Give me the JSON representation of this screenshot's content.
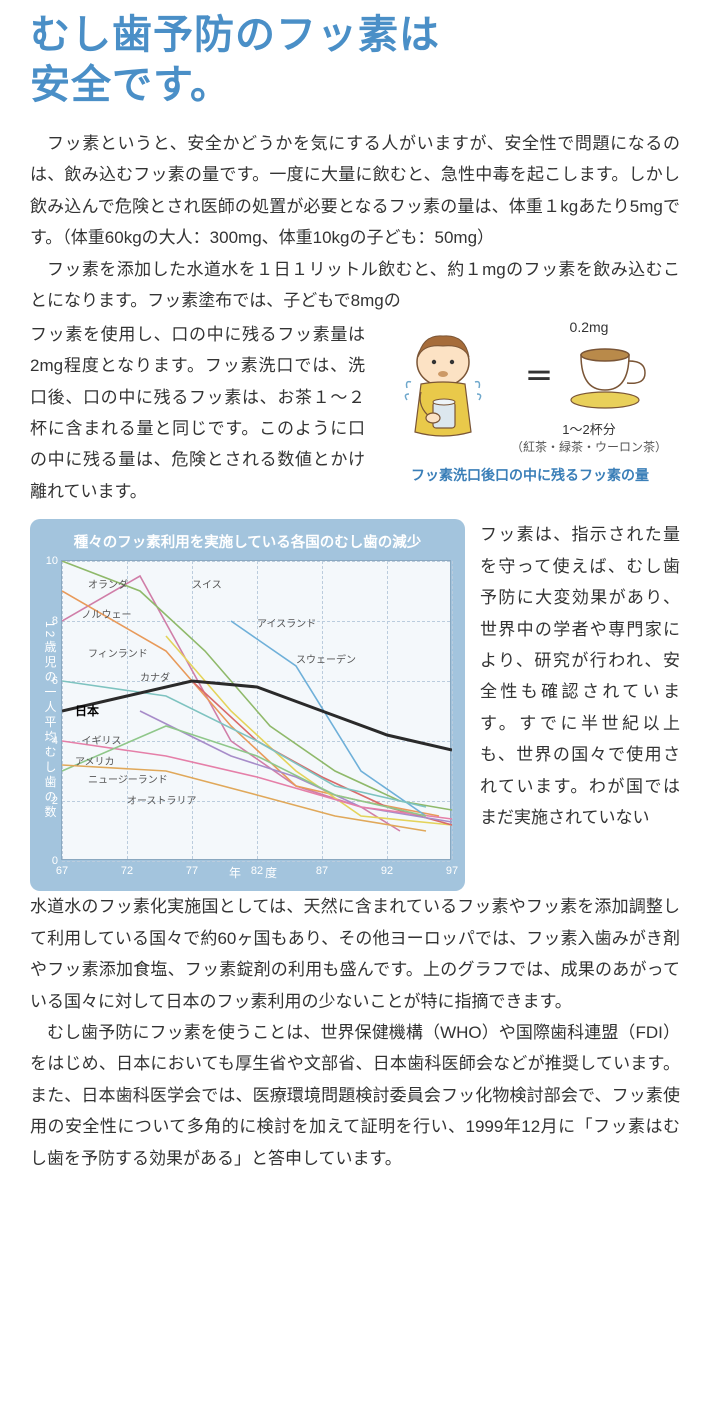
{
  "title_color": "#4a8fc7",
  "title_line1": "むし歯予防のフッ素は",
  "title_line2": "安全です。",
  "para1": "フッ素というと、安全かどうかを気にする人がいますが、安全性で問題になるのは、飲み込むフッ素の量です。一度に大量に飲むと、急性中毒を起こします。しかし飲み込んで危険とされ医師の処置が必要となるフッ素の量は、体重１kgあたり5mgです。（体重60kgの大人：300mg、体重10kgの子ども：50mg）",
  "para2": "フッ素を添加した水道水を１日１リットル飲むと、約１mgのフッ素を飲み込むことになります。フッ素塗布では、子どもで8mgの",
  "para3_left": "フッ素を使用し、口の中に残るフッ素量は2mg程度となります。フッ素洗口では、洗口後、口の中に残るフッ素は、お茶１〜２杯に含まれる量と同じです。このように口の中に残る量は、危険とされる数値とかけ離れています。",
  "illustration": {
    "mg_label": "0.2mg",
    "equals": "＝",
    "cups_label": "1〜2杯分",
    "cups_sub": "（紅茶・緑茶・ウーロン茶）",
    "caption": "フッ素洗口後口の中に残るフッ素の量",
    "boy_skin": "#fce2c4",
    "boy_hair": "#a66c3a",
    "boy_shirt": "#e9c94a",
    "cup_color": "#b98a4a",
    "saucer_color": "#e9d05a"
  },
  "para4_right": "フッ素は、指示された量を守って使えば、むし歯予防に大変効果があり、世界中の学者や専門家により、研究が行われ、安全性も確認されています。すでに半世紀以上も、世界の国々で使用されています。わが国ではまだ実施されていない",
  "para5": "水道水のフッ素化実施国としては、天然に含まれているフッ素やフッ素を添加調整して利用している国々で約60ヶ国もあり、その他ヨーロッパでは、フッ素入歯みがき剤やフッ素添加食塩、フッ素錠剤の利用も盛んです。上のグラフでは、成果のあがっている国々に対して日本のフッ素利用の少ないことが特に指摘できます。",
  "para6": "むし歯予防にフッ素を使うことは、世界保健機構（WHO）や国際歯科連盟（FDI）をはじめ、日本においても厚生省や文部省、日本歯科医師会などが推奨しています。また、日本歯科医学会では、医療環境問題検討委員会フッ化物検討部会で、フッ素使用の安全性について多角的に検討を加えて証明を行い、1999年12月に「フッ素はむし歯を予防する効果がある」と答申しています。",
  "chart": {
    "title": "種々のフッ素利用を実施している各国のむし歯の減少",
    "y_axis_label": "12歳児の一人平均むし歯の数",
    "x_axis_label": "年　度",
    "background": "#a3c4dd",
    "plot_bg": "#f4f8fb",
    "grid_color": "#bcd1e0",
    "x_ticks": [
      67,
      72,
      77,
      82,
      87,
      92,
      97
    ],
    "y_ticks": [
      0,
      2,
      4,
      6,
      8,
      10
    ],
    "xlim": [
      67,
      97
    ],
    "ylim": [
      0,
      10
    ],
    "series": [
      {
        "label": "オランダ",
        "color": "#d07ea8",
        "label_xy": [
          69,
          9.3
        ],
        "points": [
          [
            67,
            8.0
          ],
          [
            73,
            9.5
          ],
          [
            80,
            4.0
          ],
          [
            85,
            2.5
          ],
          [
            90,
            1.8
          ],
          [
            93,
            1.0
          ]
        ]
      },
      {
        "label": "スイス",
        "color": "#e89a5a",
        "label_xy": [
          77,
          9.3
        ],
        "points": [
          [
            67,
            9.0
          ],
          [
            75,
            7.0
          ],
          [
            80,
            4.5
          ],
          [
            85,
            2.5
          ],
          [
            90,
            2.0
          ],
          [
            96,
            1.5
          ]
        ]
      },
      {
        "label": "ノルウェー",
        "color": "#8fb96a",
        "label_xy": [
          68.5,
          8.3
        ],
        "points": [
          [
            67,
            10
          ],
          [
            73,
            9.0
          ],
          [
            78,
            7.0
          ],
          [
            83,
            4.5
          ],
          [
            88,
            3.0
          ],
          [
            93,
            2.0
          ],
          [
            97,
            1.7
          ]
        ]
      },
      {
        "label": "アイスランド",
        "color": "#6fb0d9",
        "label_xy": [
          82,
          8.0
        ],
        "points": [
          [
            80,
            8.0
          ],
          [
            85,
            6.5
          ],
          [
            90,
            3.0
          ],
          [
            95,
            1.5
          ]
        ]
      },
      {
        "label": "フィンランド",
        "color": "#e4d35a",
        "label_xy": [
          69,
          7.0
        ],
        "points": [
          [
            75,
            7.5
          ],
          [
            80,
            5.0
          ],
          [
            85,
            3.0
          ],
          [
            90,
            1.5
          ],
          [
            97,
            1.2
          ]
        ]
      },
      {
        "label": "スウェーデン",
        "color": "#d96a6a",
        "label_xy": [
          85,
          6.8
        ],
        "points": [
          [
            77,
            6.0
          ],
          [
            82,
            4.0
          ],
          [
            87,
            2.8
          ],
          [
            92,
            1.8
          ],
          [
            97,
            1.2
          ]
        ]
      },
      {
        "label": "カナダ",
        "color": "#7ec3c0",
        "label_xy": [
          73,
          6.2
        ],
        "points": [
          [
            67,
            6.0
          ],
          [
            75,
            5.5
          ],
          [
            82,
            4.0
          ],
          [
            88,
            2.5
          ],
          [
            95,
            1.8
          ]
        ]
      },
      {
        "label": "日本",
        "color": "#2a2a2a",
        "width": 3,
        "label_xy": [
          68,
          5.1
        ],
        "points": [
          [
            67,
            5.0
          ],
          [
            72,
            5.5
          ],
          [
            77,
            6.0
          ],
          [
            82,
            5.8
          ],
          [
            87,
            5.0
          ],
          [
            92,
            4.2
          ],
          [
            97,
            3.7
          ]
        ]
      },
      {
        "label": "イギリス",
        "color": "#a78cc9",
        "label_xy": [
          68.5,
          4.1
        ],
        "points": [
          [
            73,
            5.0
          ],
          [
            80,
            3.5
          ],
          [
            85,
            2.8
          ],
          [
            90,
            1.8
          ],
          [
            97,
            1.3
          ]
        ]
      },
      {
        "label": "アメリカ",
        "color": "#e57fa8",
        "label_xy": [
          68,
          3.4
        ],
        "points": [
          [
            67,
            4.0
          ],
          [
            75,
            3.5
          ],
          [
            82,
            2.8
          ],
          [
            90,
            1.8
          ],
          [
            97,
            1.4
          ]
        ]
      },
      {
        "label": "ニュージーランド",
        "color": "#8fc78a",
        "label_xy": [
          69,
          2.8
        ],
        "points": [
          [
            67,
            3.0
          ],
          [
            75,
            4.5
          ],
          [
            82,
            3.5
          ],
          [
            88,
            2.2
          ],
          [
            95,
            1.5
          ]
        ]
      },
      {
        "label": "オーストラリア",
        "color": "#e0a85a",
        "label_xy": [
          72,
          2.1
        ],
        "points": [
          [
            67,
            3.2
          ],
          [
            75,
            3.0
          ],
          [
            82,
            2.2
          ],
          [
            88,
            1.5
          ],
          [
            95,
            1.0
          ]
        ]
      }
    ]
  }
}
